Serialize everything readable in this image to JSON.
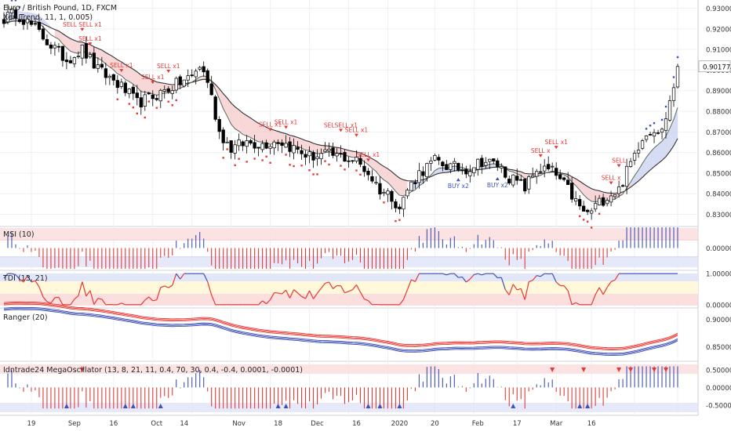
{
  "colors": {
    "up_candle": "#ffffff",
    "down_candle": "#000000",
    "grid": "#eef0f3",
    "axis_text": "#333333",
    "sell_marker": "#e53935",
    "buy_marker": "#3f51b5",
    "ma_fast": "#333333",
    "ma_slow": "#333333",
    "cloud_bear": "#f6c9cc",
    "cloud_bull": "#c9d0f2",
    "blue_series": "#3f51b5",
    "red_series": "#e53935",
    "green_series": "#43a047",
    "band_red": "#fbdcdc",
    "band_blue": "#dfe3f8",
    "band_yellow": "#fff7d6",
    "price_tag": "#ffffff"
  },
  "chart_data": [
    {
      "type": "candlestick",
      "title": "Euro / British Pound, 1D, FXCM",
      "subtitle": "Xen Trend, 11, 1, 0.005)",
      "x_tick_labels": [
        "19",
        "Sep",
        "16",
        "Oct",
        "14",
        "Nov",
        "18",
        "Dec",
        "16",
        "2020",
        "20",
        "Feb",
        "17",
        "Mar",
        "16"
      ],
      "y_tick_labels": [
        "0.93000",
        "0.92000",
        "0.91000",
        "0.90000",
        "0.89000",
        "0.88000",
        "0.87000",
        "0.86000",
        "0.85000",
        "0.84000",
        "0.83000"
      ],
      "ylim": [
        0.8245,
        0.934
      ],
      "last_price_label": "0.90177",
      "last_price": 0.90177,
      "anchors": [
        [
          0,
          0.925
        ],
        [
          3,
          0.928
        ],
        [
          8,
          0.92
        ],
        [
          12,
          0.912
        ],
        [
          16,
          0.905
        ],
        [
          20,
          0.91
        ],
        [
          24,
          0.9
        ],
        [
          28,
          0.895
        ],
        [
          31,
          0.89
        ],
        [
          34,
          0.884
        ],
        [
          38,
          0.887
        ],
        [
          41,
          0.89
        ],
        [
          45,
          0.894
        ],
        [
          48,
          0.897
        ],
        [
          50,
          0.902
        ],
        [
          52,
          0.895
        ],
        [
          55,
          0.87
        ],
        [
          58,
          0.862
        ],
        [
          62,
          0.865
        ],
        [
          66,
          0.864
        ],
        [
          70,
          0.866
        ],
        [
          74,
          0.862
        ],
        [
          78,
          0.858
        ],
        [
          82,
          0.859
        ],
        [
          86,
          0.858
        ],
        [
          90,
          0.856
        ],
        [
          93,
          0.85
        ],
        [
          96,
          0.842
        ],
        [
          99,
          0.839
        ],
        [
          101,
          0.833
        ],
        [
          103,
          0.842
        ],
        [
          106,
          0.85
        ],
        [
          110,
          0.856
        ],
        [
          114,
          0.853
        ],
        [
          118,
          0.852
        ],
        [
          122,
          0.856
        ],
        [
          126,
          0.854
        ],
        [
          129,
          0.848
        ],
        [
          133,
          0.843
        ],
        [
          136,
          0.852
        ],
        [
          140,
          0.851
        ],
        [
          144,
          0.842
        ],
        [
          147,
          0.833
        ],
        [
          149,
          0.83
        ],
        [
          151,
          0.834
        ],
        [
          154,
          0.839
        ],
        [
          157,
          0.842
        ],
        [
          160,
          0.855
        ],
        [
          163,
          0.868
        ],
        [
          166,
          0.872
        ],
        [
          168,
          0.87
        ],
        [
          170,
          0.885
        ],
        [
          172,
          0.9
        ]
      ],
      "sell_labels": [
        {
          "bar": 22,
          "text": "SELL x1"
        },
        {
          "bar": 20,
          "text": "SELL SELL x1"
        },
        {
          "bar": 30,
          "text": "SELL x1"
        },
        {
          "bar": 42,
          "text": "SELL x1"
        },
        {
          "bar": 38,
          "text": "SELL x1"
        },
        {
          "bar": 68,
          "text": "SELL x1"
        },
        {
          "bar": 72,
          "text": "SELL x1"
        },
        {
          "bar": 86,
          "text": "SELSELL x1"
        },
        {
          "bar": 93,
          "text": "SELL x1"
        },
        {
          "bar": 90,
          "text": "SELL x1"
        },
        {
          "bar": 137,
          "text": "SELL x"
        },
        {
          "bar": 141,
          "text": "SELL x1"
        },
        {
          "bar": 155,
          "text": "SELL x"
        },
        {
          "bar": 157,
          "text": "SELL"
        }
      ],
      "buy_labels": [
        {
          "bar": 116,
          "text": "BUY x2"
        },
        {
          "bar": 126,
          "text": "BUY x2"
        }
      ],
      "legend": "top-left",
      "grid": true
    },
    {
      "type": "bar",
      "title": "MSI (10)",
      "y_tick_labels": [
        "0.00000"
      ],
      "ylim": [
        -1,
        1
      ]
    },
    {
      "type": "line",
      "title": "TDI (13, 21)",
      "y_tick_labels": [
        "1.00000",
        "0.00000"
      ],
      "ylim": [
        -0.08,
        1.08
      ]
    },
    {
      "type": "line",
      "title": "Ranger (20)",
      "y_tick_labels": [
        "0.90000",
        "0.85000"
      ],
      "ylim": [
        0.825,
        0.918
      ]
    },
    {
      "type": "bar",
      "title": "Idntrade24 MegaOscillator (13, 8, 21, 11, 0.4, 70, 30, 0.4, -0.4, 0.0001, -0.0001)",
      "y_tick_labels": [
        "0.50000",
        "0.00000",
        "-0.50000"
      ],
      "ylim": [
        -0.75,
        0.7
      ]
    }
  ]
}
